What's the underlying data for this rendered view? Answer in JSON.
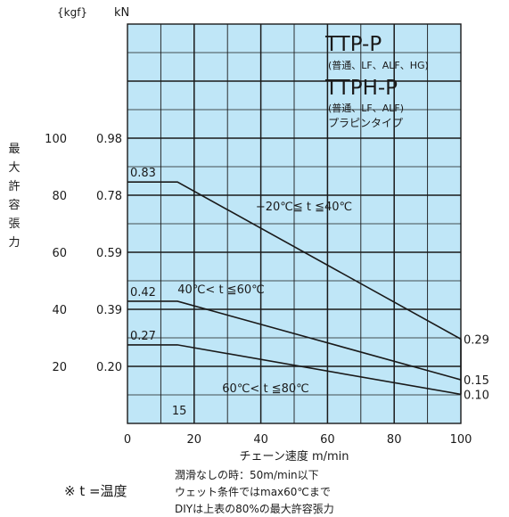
{
  "chart_data": {
    "type": "line",
    "unit_left": "{kgf}",
    "unit_right": "kN",
    "ylabel": "最大許容張力",
    "xlabel": "チェーン速度  m/min",
    "xlim": [
      0,
      100
    ],
    "x_ticks": [
      0,
      20,
      40,
      60,
      80,
      100
    ],
    "y_ticks_kgf": [
      20,
      40,
      60,
      80,
      100
    ],
    "y_ticks_kn": [
      "0.20",
      "0.39",
      "0.59",
      "0.78",
      "0.98"
    ],
    "grid": true,
    "title": "TTP-P",
    "title_sub": "(普通、LF、ALF、HG)",
    "title2": "TTPH-P",
    "title2_sub": "(普通、LF、ALF)",
    "title2_sub2": "プラピンタイプ",
    "x_marker_label": "15",
    "series": [
      {
        "name": "−20℃≦ t ≦40℃",
        "x": [
          0,
          15,
          100
        ],
        "y": [
          0.83,
          0.83,
          0.29
        ],
        "start_label": "0.83",
        "end_label": "0.29"
      },
      {
        "name": "40℃< t ≦60℃",
        "x": [
          0,
          15,
          100
        ],
        "y": [
          0.42,
          0.42,
          0.15
        ],
        "start_label": "0.42",
        "end_label": "0.15"
      },
      {
        "name": "60℃< t ≦80℃",
        "x": [
          0,
          15,
          100
        ],
        "y": [
          0.27,
          0.27,
          0.1
        ],
        "start_label": "0.27",
        "end_label": "0.10"
      }
    ]
  },
  "notes": {
    "temp_def": "※ t =温度",
    "line1": "潤滑なしの時：50m/min以下",
    "line2": "ウェット条件ではmax60℃まで",
    "line3": "DIYは上表の80%の最大許容張力"
  },
  "colors": {
    "plot_bg": "#bfe6f7",
    "grid": "#1a1a1a",
    "line": "#1a1a1a"
  }
}
